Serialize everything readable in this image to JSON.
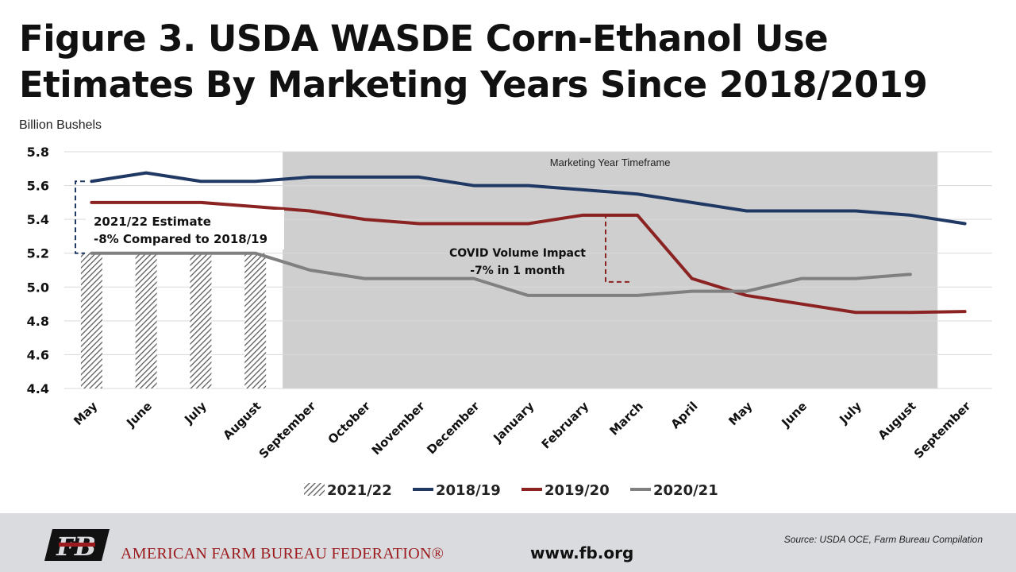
{
  "title": "Figure 3. USDA WASDE Corn-Ethanol Use Etimates By Marketing Years Since 2018/2019",
  "unit_label": "Billion Bushels",
  "colors": {
    "s2018_19": "#1f3864",
    "s2019_20": "#8b2323",
    "s2020_21": "#808080",
    "bars": "#5a5a5a",
    "shade": "#cfcfcf",
    "grid": "#d9d9d9"
  },
  "chart_data": {
    "type": "line",
    "title": "Figure 3. USDA WASDE Corn-Ethanol Use Etimates By Marketing Years Since 2018/2019",
    "ylabel": "Billion Bushels",
    "xlabel": "",
    "ylim": [
      4.4,
      5.8
    ],
    "y_ticks": [
      "4.4",
      "4.6",
      "4.8",
      "5.0",
      "5.2",
      "5.4",
      "5.6",
      "5.8"
    ],
    "grid": true,
    "legend_position": "bottom",
    "categories": [
      "May",
      "June",
      "July",
      "August",
      "September",
      "October",
      "November",
      "December",
      "January",
      "February",
      "March",
      "April",
      "May",
      "June",
      "July",
      "August",
      "September"
    ],
    "series": [
      {
        "name": "2021/22",
        "kind": "bar",
        "values": [
          5.2,
          5.2,
          5.2,
          5.2,
          null,
          null,
          null,
          null,
          null,
          null,
          null,
          null,
          null,
          null,
          null,
          null,
          null
        ]
      },
      {
        "name": "2018/19",
        "kind": "line",
        "values": [
          5.625,
          5.675,
          5.625,
          5.625,
          5.65,
          5.65,
          5.65,
          5.6,
          5.6,
          5.575,
          5.55,
          5.5,
          5.45,
          5.45,
          5.45,
          5.425,
          5.375
        ]
      },
      {
        "name": "2019/20",
        "kind": "line",
        "values": [
          5.5,
          5.5,
          5.5,
          5.475,
          5.45,
          5.4,
          5.375,
          5.375,
          5.375,
          5.425,
          5.425,
          5.05,
          4.95,
          4.9,
          4.85,
          4.85,
          4.855
        ]
      },
      {
        "name": "2020/21",
        "kind": "line",
        "values": [
          5.2,
          5.2,
          5.2,
          5.2,
          5.1,
          5.05,
          5.05,
          5.05,
          4.95,
          4.95,
          4.95,
          4.975,
          4.975,
          5.05,
          5.05,
          5.075,
          null
        ]
      }
    ],
    "shaded_region": {
      "label": "Marketing Year Timeframe",
      "from_category_index": 4,
      "to_category_index": 15
    },
    "annotations": [
      {
        "line1": "2021/22 Estimate",
        "line2": "-8% Compared to  2018/19"
      },
      {
        "line1": "COVID Volume Impact",
        "line2": "-7% in 1 month"
      }
    ]
  },
  "footer": {
    "org_name": "AMERICAN FARM BUREAU FEDERATION®",
    "logo_text": "FB",
    "website": "www.fb.org",
    "source": "Source: USDA OCE, Farm Bureau Compilation"
  }
}
